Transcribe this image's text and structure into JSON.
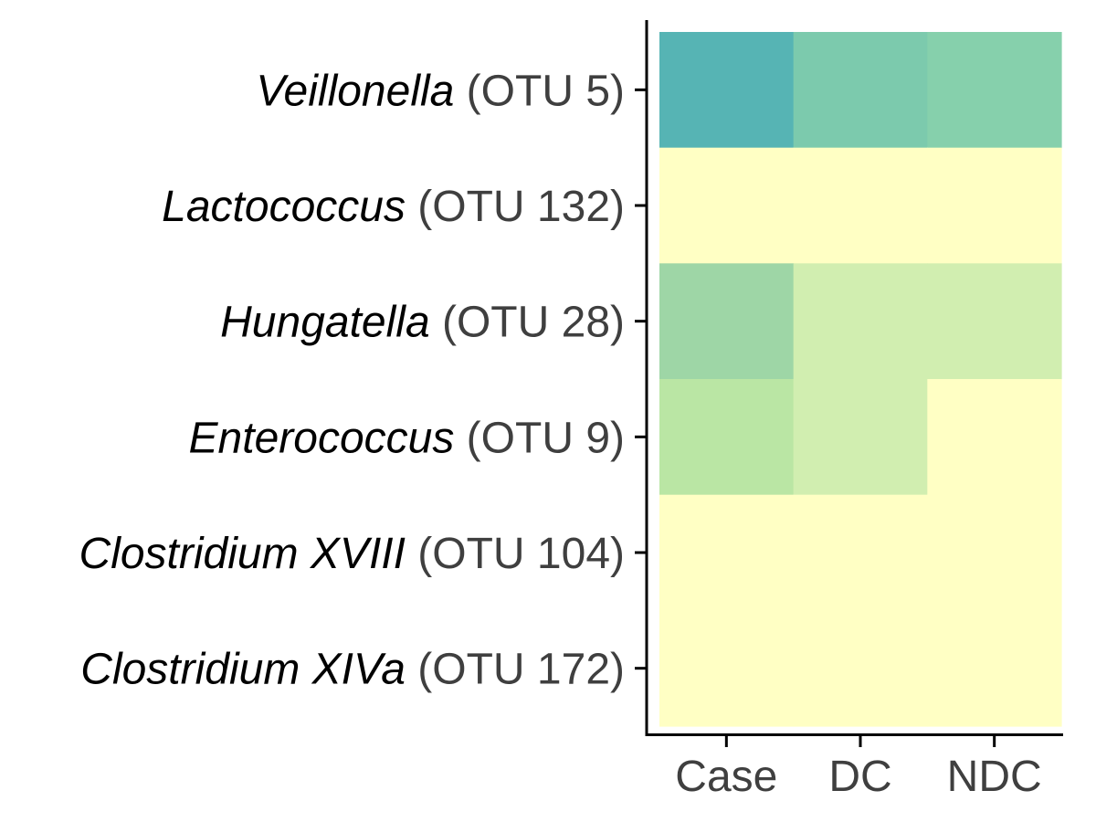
{
  "chart_data": {
    "type": "heatmap",
    "title": "",
    "xlabel": "",
    "ylabel": "",
    "columns": [
      "Case",
      "DC",
      "NDC"
    ],
    "rows": [
      {
        "genus": "Veillonella",
        "otu": "(OTU 5)"
      },
      {
        "genus": "Lactococcus",
        "otu": "(OTU 132)"
      },
      {
        "genus": "Hungatella",
        "otu": "(OTU 28)"
      },
      {
        "genus": "Enterococcus",
        "otu": "(OTU 9)"
      },
      {
        "genus": "Clostridium XVIII",
        "otu": "(OTU 104)"
      },
      {
        "genus": "Clostridium XIVa",
        "otu": "(OTU 172)"
      }
    ],
    "values": [
      [
        0.8,
        0.58,
        0.54
      ],
      [
        0.0,
        0.0,
        0.0
      ],
      [
        0.46,
        0.24,
        0.24
      ],
      [
        0.32,
        0.24,
        0.0
      ],
      [
        0.0,
        0.0,
        0.0
      ],
      [
        0.0,
        0.0,
        0.0
      ]
    ],
    "color_scale": {
      "low": "#ffffc4",
      "high": "#41a7b7"
    },
    "cell_colors": [
      [
        "#56b4b4",
        "#7ccaad",
        "#86d0ac"
      ],
      [
        "#ffffc4",
        "#ffffc4",
        "#ffffc4"
      ],
      [
        "#9ed6a6",
        "#d1eeb0",
        "#d1eeb0"
      ],
      [
        "#bae6a4",
        "#d1eeb0",
        "#ffffc4"
      ],
      [
        "#ffffc4",
        "#ffffc4",
        "#ffffc4"
      ],
      [
        "#ffffc4",
        "#ffffc4",
        "#ffffc4"
      ]
    ],
    "legend": "none",
    "grid": false
  }
}
